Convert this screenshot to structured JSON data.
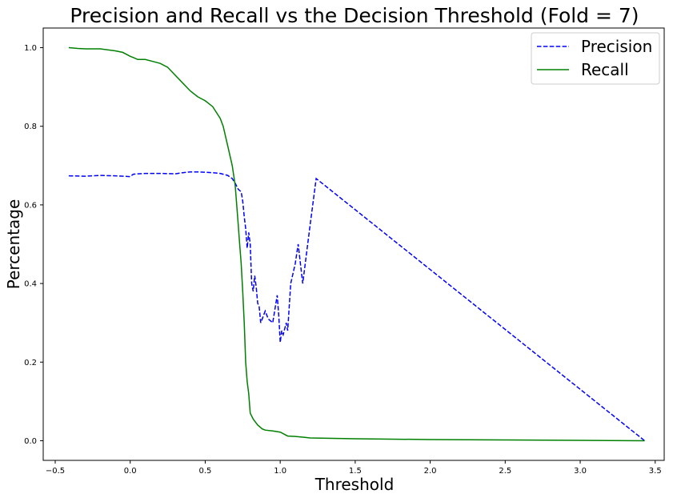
{
  "chart_data": {
    "type": "line",
    "title": "Precision and Recall vs the Decision Threshold (Fold = 7)",
    "xlabel": "Threshold",
    "ylabel": "Percentage",
    "xlim": [
      -0.58,
      3.56
    ],
    "ylim": [
      -0.05,
      1.05
    ],
    "xticks": [
      -0.5,
      0.0,
      0.5,
      1.0,
      1.5,
      2.0,
      2.5,
      3.0,
      3.5
    ],
    "xtick_labels": [
      "−0.5",
      "0.0",
      "0.5",
      "1.0",
      "1.5",
      "2.0",
      "2.5",
      "3.0",
      "3.5"
    ],
    "yticks": [
      0.0,
      0.2,
      0.4,
      0.6,
      0.8,
      1.0
    ],
    "ytick_labels": [
      "0.0",
      "0.2",
      "0.4",
      "0.6",
      "0.8",
      "1.0"
    ],
    "grid": false,
    "legend": "top-right",
    "series": [
      {
        "name": "Precision",
        "color": "#0000ff",
        "style": "dashed",
        "x": [
          -0.41,
          -0.3,
          -0.2,
          -0.1,
          0.0,
          0.02,
          0.05,
          0.1,
          0.2,
          0.3,
          0.35,
          0.4,
          0.45,
          0.5,
          0.55,
          0.6,
          0.65,
          0.68,
          0.7,
          0.72,
          0.74,
          0.75,
          0.76,
          0.77,
          0.78,
          0.79,
          0.8,
          0.81,
          0.82,
          0.83,
          0.84,
          0.85,
          0.86,
          0.87,
          0.88,
          0.9,
          0.92,
          0.95,
          0.98,
          0.99,
          1.0,
          1.01,
          1.02,
          1.04,
          1.05,
          1.07,
          1.1,
          1.12,
          1.15,
          1.2,
          1.24,
          3.43
        ],
        "y": [
          0.674,
          0.673,
          0.675,
          0.674,
          0.672,
          0.678,
          0.679,
          0.68,
          0.68,
          0.679,
          0.682,
          0.684,
          0.684,
          0.683,
          0.682,
          0.68,
          0.675,
          0.667,
          0.655,
          0.64,
          0.633,
          0.61,
          0.57,
          0.54,
          0.49,
          0.53,
          0.5,
          0.4,
          0.38,
          0.42,
          0.39,
          0.35,
          0.34,
          0.3,
          0.31,
          0.33,
          0.31,
          0.3,
          0.37,
          0.32,
          0.25,
          0.28,
          0.27,
          0.3,
          0.28,
          0.4,
          0.45,
          0.5,
          0.4,
          0.55,
          0.667,
          0.0
        ]
      },
      {
        "name": "Recall",
        "color": "#008000",
        "style": "solid",
        "x": [
          -0.41,
          -0.35,
          -0.3,
          -0.2,
          -0.1,
          -0.05,
          0.0,
          0.02,
          0.05,
          0.1,
          0.15,
          0.2,
          0.25,
          0.3,
          0.35,
          0.4,
          0.45,
          0.5,
          0.55,
          0.6,
          0.62,
          0.65,
          0.68,
          0.7,
          0.71,
          0.72,
          0.73,
          0.74,
          0.75,
          0.76,
          0.77,
          0.78,
          0.79,
          0.8,
          0.82,
          0.85,
          0.88,
          0.9,
          0.95,
          1.0,
          1.05,
          1.1,
          1.15,
          1.2,
          1.5,
          2.0,
          2.5,
          3.0,
          3.43
        ],
        "y": [
          1.0,
          0.998,
          0.997,
          0.997,
          0.992,
          0.988,
          0.978,
          0.975,
          0.97,
          0.97,
          0.965,
          0.96,
          0.95,
          0.93,
          0.91,
          0.89,
          0.875,
          0.865,
          0.85,
          0.82,
          0.8,
          0.75,
          0.7,
          0.65,
          0.6,
          0.55,
          0.5,
          0.45,
          0.38,
          0.3,
          0.2,
          0.15,
          0.12,
          0.07,
          0.055,
          0.04,
          0.03,
          0.027,
          0.025,
          0.022,
          0.012,
          0.011,
          0.009,
          0.007,
          0.005,
          0.003,
          0.002,
          0.001,
          0.0
        ]
      }
    ]
  }
}
